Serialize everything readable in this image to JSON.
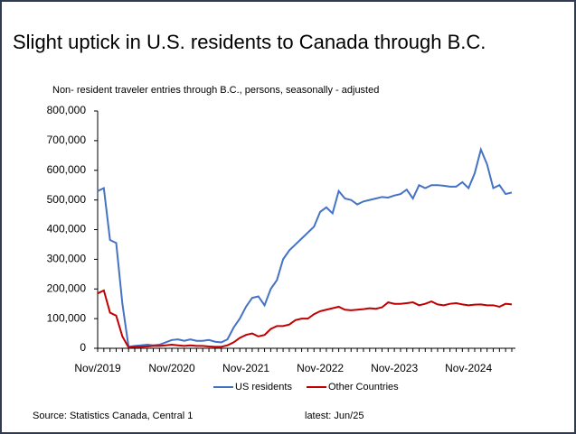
{
  "chart_data": {
    "type": "line",
    "title": "Slight uptick in U.S. residents to Canada through B.C.",
    "subtitle": "Non- resident traveler entries through B.C., persons, seasonally - adjusted",
    "source": "Source: Statistics Canada, Central 1",
    "note": "latest: Jun/25",
    "categories": [
      "Nov/2019",
      null,
      null,
      null,
      null,
      null,
      null,
      null,
      null,
      null,
      null,
      null,
      "Nov/2020",
      null,
      null,
      null,
      null,
      null,
      null,
      null,
      null,
      null,
      null,
      null,
      "Nov-2021",
      null,
      null,
      null,
      null,
      null,
      null,
      null,
      null,
      null,
      null,
      null,
      "Nov-2022",
      null,
      null,
      null,
      null,
      null,
      null,
      null,
      null,
      null,
      null,
      null,
      "Nov-2023",
      null,
      null,
      null,
      null,
      null,
      null,
      null,
      null,
      null,
      null,
      null,
      "Nov-2024",
      null,
      null,
      null,
      null,
      null,
      null,
      null
    ],
    "series": [
      {
        "name": "US residents",
        "color": "#4472c4",
        "values": [
          530000,
          540000,
          365000,
          355000,
          150000,
          5000,
          8000,
          10000,
          12000,
          10000,
          12000,
          20000,
          28000,
          30000,
          25000,
          30000,
          25000,
          25000,
          28000,
          22000,
          20000,
          30000,
          70000,
          100000,
          140000,
          170000,
          175000,
          145000,
          200000,
          230000,
          300000,
          330000,
          350000,
          370000,
          390000,
          410000,
          460000,
          475000,
          455000,
          530000,
          505000,
          500000,
          485000,
          495000,
          500000,
          505000,
          510000,
          508000,
          515000,
          520000,
          535000,
          505000,
          550000,
          540000,
          550000,
          550000,
          548000,
          545000,
          545000,
          560000,
          540000,
          590000,
          670000,
          620000,
          540000,
          550000,
          520000,
          525000
        ]
      },
      {
        "name": "Other Countries",
        "color": "#c00000",
        "values": [
          185000,
          195000,
          120000,
          110000,
          40000,
          3000,
          5000,
          5000,
          6000,
          8000,
          8000,
          10000,
          12000,
          10000,
          8000,
          10000,
          8000,
          8000,
          6000,
          5000,
          5000,
          10000,
          20000,
          35000,
          45000,
          50000,
          40000,
          45000,
          65000,
          75000,
          75000,
          80000,
          95000,
          100000,
          100000,
          115000,
          125000,
          130000,
          135000,
          140000,
          130000,
          128000,
          130000,
          132000,
          135000,
          133000,
          138000,
          155000,
          150000,
          150000,
          152000,
          155000,
          145000,
          150000,
          158000,
          148000,
          145000,
          150000,
          152000,
          148000,
          145000,
          147000,
          148000,
          145000,
          145000,
          140000,
          150000,
          148000
        ]
      }
    ],
    "ylim": [
      0,
      800000
    ],
    "yticks": [
      0,
      {
        "value": 100000,
        "label": "100,000"
      },
      {
        "value": 200000,
        "label": "200,000"
      },
      {
        "value": 300000,
        "label": "300,000"
      },
      {
        "value": 400000,
        "label": "400,000"
      },
      {
        "value": 500000,
        "label": "500,000"
      },
      {
        "value": 600000,
        "label": "600,000"
      },
      {
        "value": 700000,
        "label": "700,000"
      },
      {
        "value": 800000,
        "label": "800,000"
      }
    ],
    "legend": "bottom"
  }
}
